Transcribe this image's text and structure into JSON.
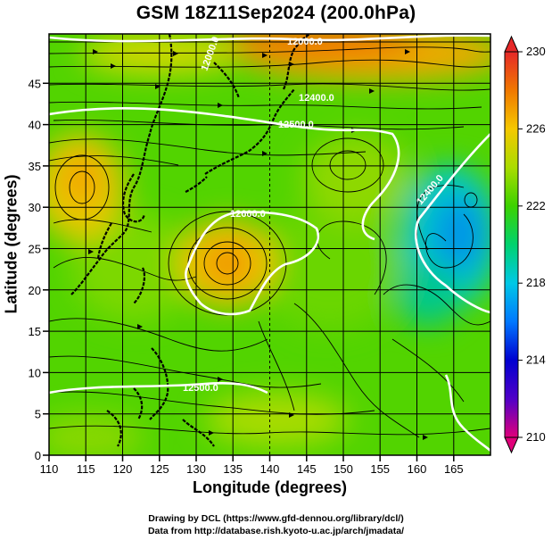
{
  "title": "GSM 18Z11Sep2024 (200.0hPa)",
  "x_axis": {
    "label": "Longitude (degrees)",
    "ticks": [
      "110",
      "115",
      "120",
      "125",
      "130",
      "135",
      "140",
      "145",
      "150",
      "155",
      "160",
      "165"
    ]
  },
  "y_axis": {
    "label": "Latitude  (degrees)",
    "ticks": [
      "0",
      "5",
      "10",
      "15",
      "20",
      "25",
      "30",
      "35",
      "40",
      "45"
    ]
  },
  "colorbar": {
    "labels": [
      "230",
      "226",
      "222",
      "218",
      "214",
      "210"
    ],
    "range": [
      210,
      230
    ],
    "colors": [
      "#e0007a",
      "#5000c8",
      "#0000d0",
      "#0078ff",
      "#00c8e6",
      "#00d26e",
      "#3cd200",
      "#aadc00",
      "#f5c800",
      "#f07800",
      "#e62828"
    ]
  },
  "contour_labels": [
    "12000.0",
    "12000.0",
    "12400.0",
    "12500.0",
    "12600.0",
    "12400.0",
    "12500.0"
  ],
  "credits": {
    "drawing": "Drawing by DCL (https://www.gfd-dennou.org/library/dcl/)",
    "data": "Data from http://database.rish.kyoto-u.ac.jp/arch/jmadata/"
  },
  "chart_data": {
    "type": "heatmap",
    "title": "GSM 18Z11Sep2024 (200.0hPa)",
    "xlabel": "Longitude (degrees)",
    "ylabel": "Latitude  (degrees)",
    "xlim": [
      110,
      170
    ],
    "ylim": [
      0,
      50
    ],
    "colorbar_range": [
      210,
      230
    ],
    "grid": true,
    "overlay": "streamlines and geopotential height contours",
    "contours": [
      {
        "label": "12000.0",
        "lon": 128,
        "lat": 47
      },
      {
        "label": "12000.0",
        "lon": 142,
        "lat": 49
      },
      {
        "label": "12400.0",
        "lon": 145,
        "lat": 44
      },
      {
        "label": "12500.0",
        "lon": 143,
        "lat": 41
      },
      {
        "label": "12600.0",
        "lon": 136,
        "lat": 30
      },
      {
        "label": "12400.0",
        "lon": 162,
        "lat": 33
      },
      {
        "label": "12500.0",
        "lon": 130,
        "lat": 8
      }
    ],
    "features": [
      {
        "name": "warm core",
        "lon": 135,
        "lat": 25
      },
      {
        "name": "warm core",
        "lon": 117,
        "lat": 34
      },
      {
        "name": "cold region",
        "lon": 167,
        "lat": 29
      },
      {
        "name": "warm band",
        "lon": 146,
        "lat": 47
      }
    ]
  }
}
